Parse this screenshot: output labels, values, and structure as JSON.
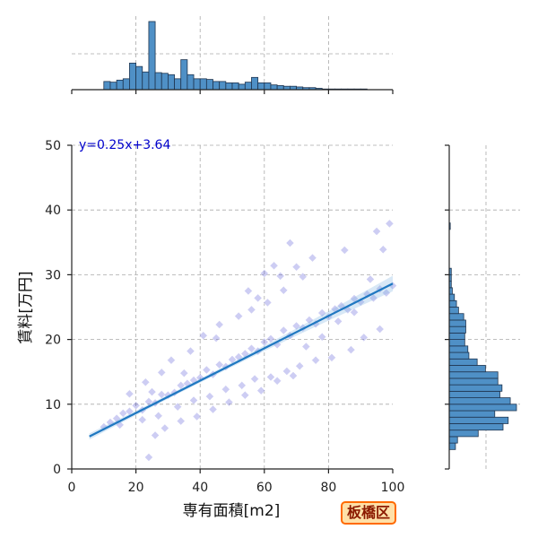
{
  "chart_data": {
    "type": "scatter",
    "title": "",
    "xlabel": "専有面積[m2]",
    "ylabel": "賃料[万円]",
    "xlim": [
      0,
      100
    ],
    "ylim": [
      0,
      50
    ],
    "x_ticks": [
      0,
      20,
      40,
      60,
      80,
      100
    ],
    "y_ticks": [
      0,
      10,
      20,
      30,
      40,
      50
    ],
    "grid": true,
    "regression": {
      "equation": "y=0.25x+3.64",
      "slope": 0.25,
      "intercept": 3.64,
      "x_range": [
        5.5,
        100
      ]
    },
    "scatter_points": {
      "x": [
        10,
        12,
        14,
        16,
        18,
        20,
        22,
        24,
        26,
        28,
        30,
        32,
        34,
        36,
        38,
        40,
        42,
        44,
        46,
        48,
        50,
        52,
        54,
        56,
        58,
        60,
        62,
        64,
        66,
        68,
        70,
        72,
        74,
        76,
        78,
        80,
        82,
        84,
        86,
        88,
        90,
        92,
        94,
        96,
        98,
        100,
        15,
        25,
        35,
        45,
        55,
        65,
        75,
        85,
        95,
        22,
        27,
        33,
        38,
        43,
        48,
        53,
        57,
        62,
        67,
        71,
        76,
        81,
        87,
        91,
        96,
        60,
        63,
        68,
        72,
        99,
        18,
        23,
        28,
        31,
        37,
        41,
        46,
        52,
        58,
        26,
        29,
        34,
        39,
        44,
        49,
        54,
        59,
        64,
        69,
        73,
        78,
        83,
        88,
        93,
        97,
        56,
        61,
        66,
        70,
        24
      ],
      "y": [
        6.5,
        7.2,
        7.8,
        8.6,
        8.9,
        9.8,
        9.1,
        10.4,
        10.2,
        11.5,
        11.4,
        11.8,
        12.9,
        13.2,
        13.7,
        14.1,
        15.3,
        14.6,
        16.1,
        15.8,
        16.9,
        17.3,
        17.8,
        18.6,
        18.2,
        19.6,
        20.1,
        19.2,
        21.4,
        20.6,
        22.1,
        21.8,
        23.0,
        22.4,
        24.1,
        23.5,
        24.7,
        25.2,
        24.6,
        26.3,
        25.8,
        27.0,
        26.4,
        27.8,
        27.2,
        28.3,
        6.8,
        11.9,
        14.8,
        20.2,
        27.5,
        29.8,
        32.6,
        33.8,
        36.7,
        7.6,
        8.2,
        9.6,
        10.6,
        11.2,
        12.3,
        12.9,
        13.9,
        14.2,
        15.1,
        15.9,
        16.8,
        17.2,
        18.4,
        20.3,
        21.6,
        30.2,
        31.4,
        34.9,
        29.7,
        37.9,
        11.6,
        13.4,
        14.9,
        16.8,
        18.2,
        20.6,
        22.3,
        23.6,
        26.4,
        5.2,
        6.3,
        7.4,
        8.1,
        9.2,
        10.3,
        11.4,
        12.1,
        13.6,
        14.4,
        18.9,
        20.4,
        22.8,
        24.2,
        29.3,
        33.9,
        24.6,
        25.7,
        27.6,
        31.2,
        1.8
      ]
    },
    "top_histogram": {
      "bin_edges": [
        0,
        2,
        4,
        6,
        8,
        10,
        12,
        14,
        16,
        18,
        20,
        22,
        24,
        26,
        28,
        30,
        32,
        34,
        36,
        38,
        40,
        42,
        44,
        46,
        48,
        50,
        52,
        54,
        56,
        58,
        60,
        62,
        64,
        66,
        68,
        70,
        72,
        74,
        76,
        78,
        80,
        82,
        84,
        86,
        88,
        90,
        92,
        94,
        96,
        98,
        100
      ],
      "counts": [
        0,
        0,
        0,
        0,
        0,
        12,
        11,
        14,
        16,
        39,
        34,
        26,
        100,
        25,
        24,
        22,
        16,
        44,
        22,
        16,
        16,
        15,
        12,
        12,
        10,
        10,
        8,
        11,
        18,
        10,
        10,
        7,
        6,
        5,
        5,
        4,
        3,
        3,
        2,
        1,
        1,
        1,
        1,
        1,
        1,
        1,
        0,
        0,
        0,
        0
      ]
    },
    "right_histogram": {
      "bin_edges": [
        0,
        1,
        2,
        3,
        4,
        5,
        6,
        7,
        8,
        9,
        10,
        11,
        12,
        13,
        14,
        15,
        16,
        17,
        18,
        19,
        20,
        21,
        22,
        23,
        24,
        25,
        26,
        27,
        28,
        29,
        30,
        31,
        32,
        33,
        34,
        35,
        36,
        37,
        38
      ],
      "counts": [
        0,
        0,
        0,
        6,
        8,
        28,
        52,
        57,
        44,
        65,
        59,
        49,
        51,
        47,
        47,
        35,
        27,
        19,
        18,
        15,
        15,
        16,
        16,
        14,
        9,
        7,
        5,
        3,
        2,
        2,
        2,
        0,
        0,
        0,
        0,
        0,
        0,
        1,
        0
      ]
    }
  },
  "badge": {
    "label": "板橋区"
  },
  "colors": {
    "scatter": "#5a5ad8",
    "regression": "#1f78c1",
    "bars": "#4f90c6",
    "equation": "#0000cc",
    "badge_border": "#ff6a00",
    "badge_fill": "#ffe0a8",
    "badge_text": "#8b1a00"
  }
}
